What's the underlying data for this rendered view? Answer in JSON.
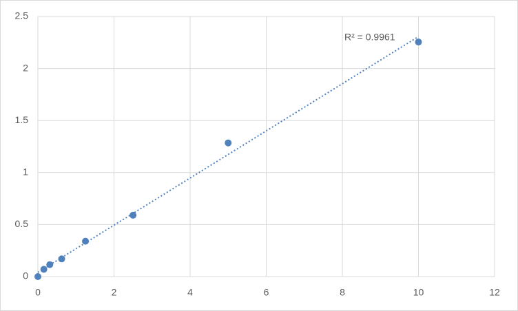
{
  "chart_data": {
    "type": "scatter",
    "annotation": "R² = 0.9961",
    "series": [
      {
        "color": "#4f81bd",
        "x": [
          0,
          0.156,
          0.3125,
          0.625,
          1.25,
          2.5,
          5,
          10
        ],
        "values": [
          0,
          0.07,
          0.115,
          0.17,
          0.34,
          0.59,
          1.285,
          2.255
        ]
      }
    ],
    "xlim": [
      0,
      12
    ],
    "xticks": [
      0,
      2,
      4,
      6,
      8,
      10,
      12
    ],
    "ylim": [
      0,
      2.5
    ],
    "yticks": [
      0,
      0.5,
      1,
      1.5,
      2,
      2.5
    ],
    "grid": true,
    "trendline": "linear"
  }
}
